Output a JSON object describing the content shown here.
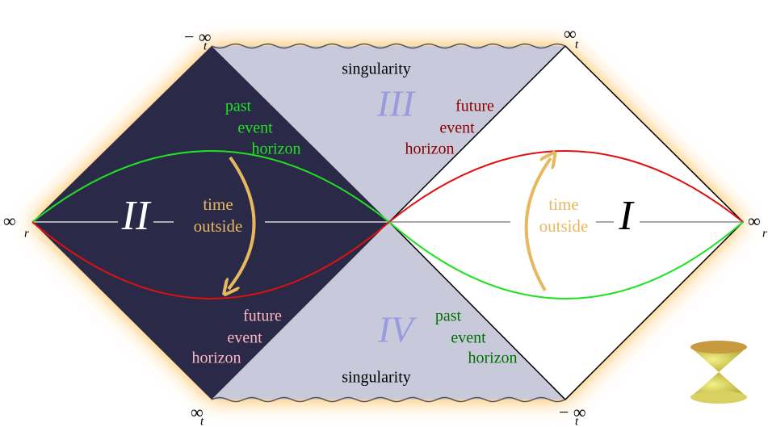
{
  "corners": [
    {
      "symbol": "− ∞",
      "subscript": "t"
    },
    {
      "symbol": "∞",
      "subscript": "t"
    },
    {
      "symbol": "∞",
      "subscript": "t"
    },
    {
      "symbol": "− ∞",
      "subscript": "t"
    },
    {
      "symbol": "∞",
      "subscript": "r"
    },
    {
      "symbol": "∞",
      "subscript": "r"
    }
  ],
  "regions": [
    {
      "label": "I"
    },
    {
      "label": "II"
    },
    {
      "label": "III"
    },
    {
      "label": "IV"
    }
  ],
  "singularity": [
    "singularity",
    "singularity"
  ],
  "horizons": [
    {
      "lines": [
        "past",
        "event",
        "horizon"
      ]
    },
    {
      "lines": [
        "future",
        "event",
        "horizon"
      ]
    },
    {
      "lines": [
        "future",
        "event",
        "horizon"
      ]
    },
    {
      "lines": [
        "past",
        "event",
        "horizon"
      ]
    }
  ],
  "time_labels": [
    [
      "time",
      "outside"
    ],
    [
      "time",
      "outside"
    ]
  ]
}
